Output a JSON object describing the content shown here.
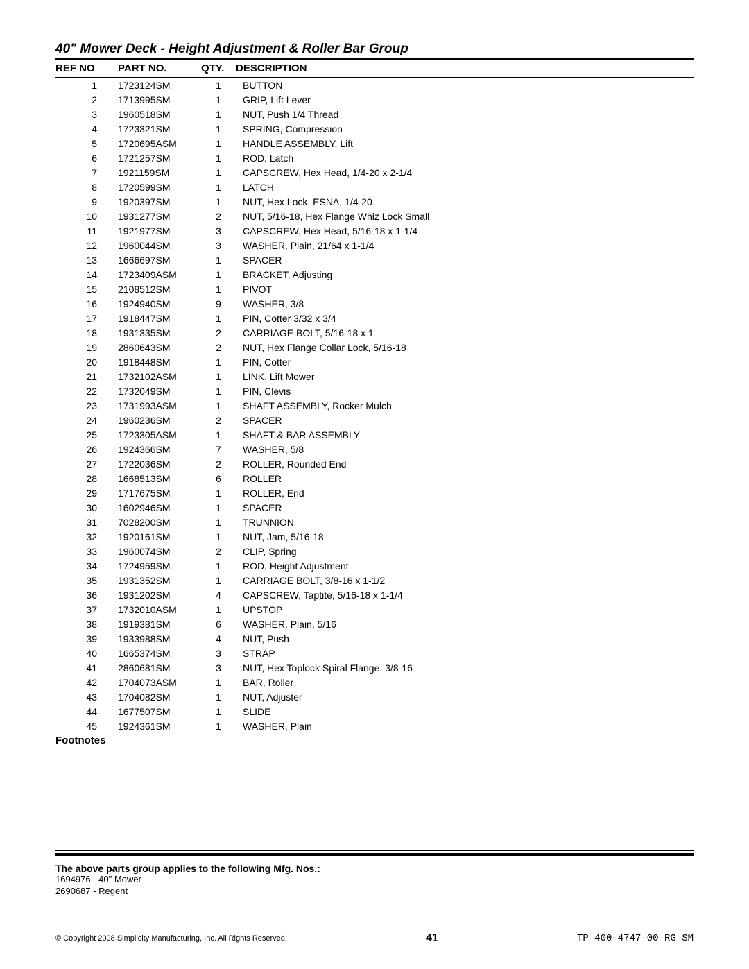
{
  "title": "40\" Mower Deck - Height Adjustment & Roller Bar Group",
  "headers": {
    "refno": "REF NO",
    "partno": "PART NO.",
    "qty": "QTY.",
    "description": "DESCRIPTION"
  },
  "rows": [
    {
      "ref": "1",
      "part": "1723124SM",
      "qty": "1",
      "desc": "BUTTON"
    },
    {
      "ref": "2",
      "part": "1713995SM",
      "qty": "1",
      "desc": "GRIP, Lift Lever"
    },
    {
      "ref": "3",
      "part": "1960518SM",
      "qty": "1",
      "desc": "NUT, Push 1/4 Thread"
    },
    {
      "ref": "4",
      "part": "1723321SM",
      "qty": "1",
      "desc": "SPRING, Compression"
    },
    {
      "ref": "5",
      "part": "1720695ASM",
      "qty": "1",
      "desc": "HANDLE ASSEMBLY, Lift"
    },
    {
      "ref": "6",
      "part": "1721257SM",
      "qty": "1",
      "desc": "ROD, Latch"
    },
    {
      "ref": "7",
      "part": "1921159SM",
      "qty": "1",
      "desc": "CAPSCREW, Hex Head, 1/4-20 x 2-1/4"
    },
    {
      "ref": "8",
      "part": "1720599SM",
      "qty": "1",
      "desc": "LATCH"
    },
    {
      "ref": "9",
      "part": "1920397SM",
      "qty": "1",
      "desc": "NUT, Hex Lock, ESNA, 1/4-20"
    },
    {
      "ref": "10",
      "part": "1931277SM",
      "qty": "2",
      "desc": "NUT, 5/16-18, Hex Flange Whiz Lock Small"
    },
    {
      "ref": "11",
      "part": "1921977SM",
      "qty": "3",
      "desc": "CAPSCREW, Hex Head, 5/16-18 x 1-1/4"
    },
    {
      "ref": "12",
      "part": "1960044SM",
      "qty": "3",
      "desc": "WASHER, Plain, 21/64 x 1-1/4"
    },
    {
      "ref": "13",
      "part": "1666697SM",
      "qty": "1",
      "desc": "SPACER"
    },
    {
      "ref": "14",
      "part": "1723409ASM",
      "qty": "1",
      "desc": "BRACKET, Adjusting"
    },
    {
      "ref": "15",
      "part": "2108512SM",
      "qty": "1",
      "desc": "PIVOT"
    },
    {
      "ref": "16",
      "part": "1924940SM",
      "qty": "9",
      "desc": "WASHER, 3/8"
    },
    {
      "ref": "17",
      "part": "1918447SM",
      "qty": "1",
      "desc": "PIN, Cotter 3/32 x 3/4"
    },
    {
      "ref": "18",
      "part": "1931335SM",
      "qty": "2",
      "desc": "CARRIAGE BOLT, 5/16-18 x 1"
    },
    {
      "ref": "19",
      "part": "2860643SM",
      "qty": "2",
      "desc": "NUT, Hex Flange Collar Lock, 5/16-18"
    },
    {
      "ref": "20",
      "part": "1918448SM",
      "qty": "1",
      "desc": "PIN, Cotter"
    },
    {
      "ref": "21",
      "part": "1732102ASM",
      "qty": "1",
      "desc": "LINK, Lift Mower"
    },
    {
      "ref": "22",
      "part": "1732049SM",
      "qty": "1",
      "desc": "PIN, Clevis"
    },
    {
      "ref": "23",
      "part": "1731993ASM",
      "qty": "1",
      "desc": "SHAFT ASSEMBLY, Rocker Mulch"
    },
    {
      "ref": "24",
      "part": "1960236SM",
      "qty": "2",
      "desc": "SPACER"
    },
    {
      "ref": "25",
      "part": "1723305ASM",
      "qty": "1",
      "desc": "SHAFT & BAR ASSEMBLY"
    },
    {
      "ref": "26",
      "part": "1924366SM",
      "qty": "7",
      "desc": "WASHER, 5/8"
    },
    {
      "ref": "27",
      "part": "1722036SM",
      "qty": "2",
      "desc": "ROLLER, Rounded End"
    },
    {
      "ref": "28",
      "part": "1668513SM",
      "qty": "6",
      "desc": "ROLLER"
    },
    {
      "ref": "29",
      "part": "1717675SM",
      "qty": "1",
      "desc": "ROLLER, End"
    },
    {
      "ref": "30",
      "part": "1602946SM",
      "qty": "1",
      "desc": "SPACER"
    },
    {
      "ref": "31",
      "part": "7028200SM",
      "qty": "1",
      "desc": "TRUNNION"
    },
    {
      "ref": "32",
      "part": "1920161SM",
      "qty": "1",
      "desc": "NUT, Jam, 5/16-18"
    },
    {
      "ref": "33",
      "part": "1960074SM",
      "qty": "2",
      "desc": "CLIP, Spring"
    },
    {
      "ref": "34",
      "part": "1724959SM",
      "qty": "1",
      "desc": "ROD, Height Adjustment"
    },
    {
      "ref": "35",
      "part": "1931352SM",
      "qty": "1",
      "desc": "CARRIAGE BOLT, 3/8-16 x 1-1/2"
    },
    {
      "ref": "36",
      "part": "1931202SM",
      "qty": "4",
      "desc": "CAPSCREW, Taptite, 5/16-18 x 1-1/4"
    },
    {
      "ref": "37",
      "part": "1732010ASM",
      "qty": "1",
      "desc": "UPSTOP"
    },
    {
      "ref": "38",
      "part": "1919381SM",
      "qty": "6",
      "desc": "WASHER, Plain, 5/16"
    },
    {
      "ref": "39",
      "part": "1933988SM",
      "qty": "4",
      "desc": "NUT, Push"
    },
    {
      "ref": "40",
      "part": "1665374SM",
      "qty": "3",
      "desc": "STRAP"
    },
    {
      "ref": "41",
      "part": "2860681SM",
      "qty": "3",
      "desc": "NUT, Hex Toplock Spiral Flange, 3/8-16"
    },
    {
      "ref": "42",
      "part": "1704073ASM",
      "qty": "1",
      "desc": "BAR, Roller"
    },
    {
      "ref": "43",
      "part": "1704082SM",
      "qty": "1",
      "desc": "NUT, Adjuster"
    },
    {
      "ref": "44",
      "part": "1677507SM",
      "qty": "1",
      "desc": "SLIDE"
    },
    {
      "ref": "45",
      "part": "1924361SM",
      "qty": "1",
      "desc": "WASHER, Plain"
    }
  ],
  "footnotes_label": "Footnotes",
  "applies_text": "The above parts group applies to the following Mfg. Nos.:",
  "mfg_lines": [
    "1694976 - 40\" Mower",
    "2690687 - Regent"
  ],
  "copyright": "© Copyright 2008 Simplicity Manufacturing, Inc. All Rights Reserved.",
  "page_number": "41",
  "doc_code": "TP 400-4747-00-RG-SM"
}
